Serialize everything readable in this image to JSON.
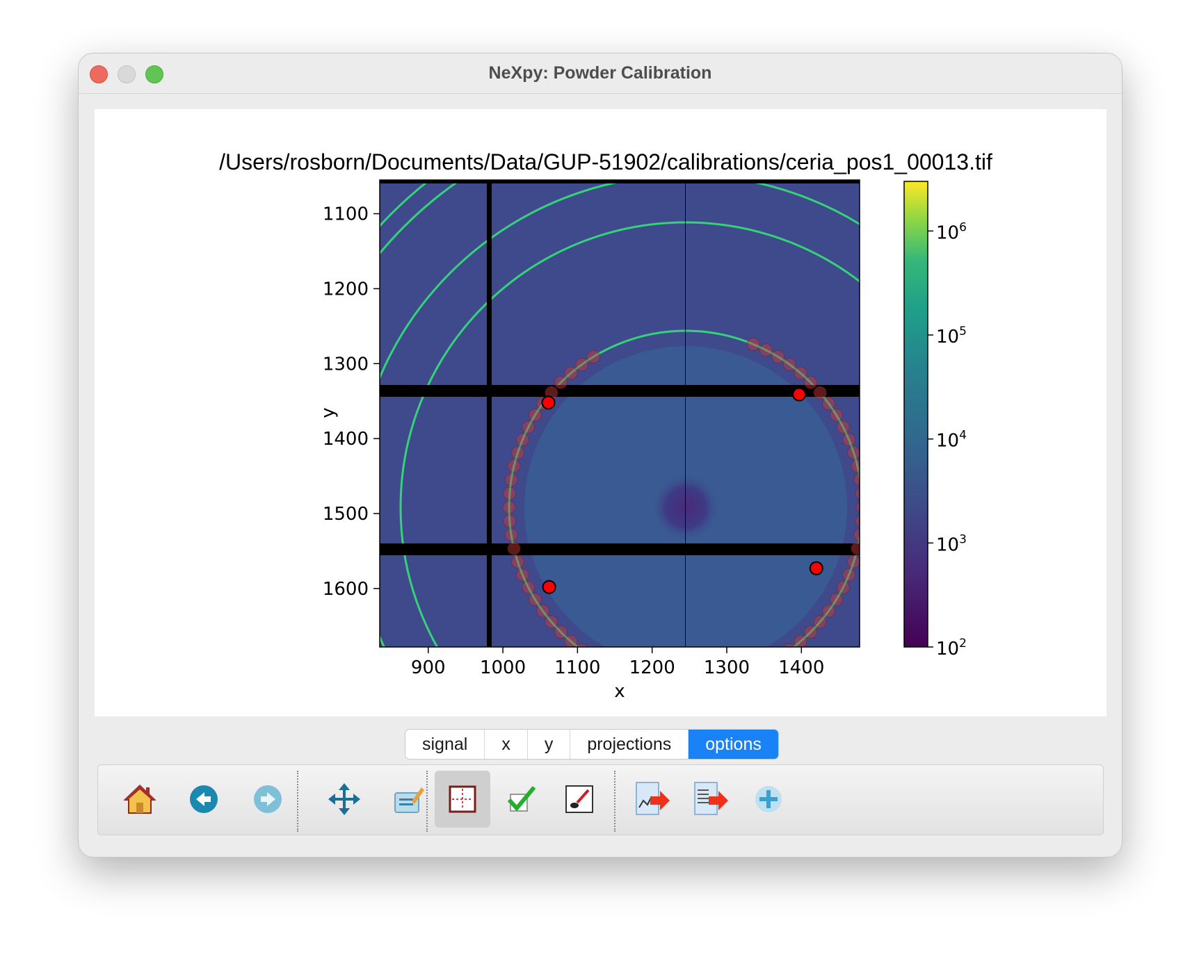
{
  "window": {
    "title": "NeXpy: Powder Calibration"
  },
  "plot": {
    "title": "/Users/rosborn/Documents/Data/GUP-51902/calibrations/ceria_pos1_00013.tif",
    "xlabel": "x",
    "ylabel": "y",
    "xticks": [
      "900",
      "1000",
      "1100",
      "1200",
      "1300",
      "1400"
    ],
    "yticks": [
      "1100",
      "1200",
      "1300",
      "1400",
      "1500",
      "1600"
    ],
    "colorbar": {
      "base": "10",
      "exponents": [
        "6",
        "5",
        "4",
        "3",
        "2"
      ]
    },
    "colors": {
      "background": "#3c4c8c",
      "ring": "#35d27a",
      "point": "#ff0000"
    }
  },
  "chart_data": {
    "type": "heatmap",
    "xlim": [
      835,
      1478
    ],
    "ylim": [
      1678,
      1055
    ],
    "colorbar_range": [
      100,
      3000000
    ],
    "colorbar_scale": "log",
    "colormap": "viridis",
    "grid": false,
    "selected_points": [
      {
        "x": 1061,
        "y": 1352
      },
      {
        "x": 1397,
        "y": 1341
      },
      {
        "x": 1062,
        "y": 1598
      },
      {
        "x": 1420,
        "y": 1573
      }
    ]
  },
  "tabs": [
    {
      "label": "signal",
      "active": false
    },
    {
      "label": "x",
      "active": false
    },
    {
      "label": "y",
      "active": false
    },
    {
      "label": "projections",
      "active": false
    },
    {
      "label": "options",
      "active": true
    }
  ],
  "toolbar": {
    "buttons": [
      {
        "icon": "home-icon"
      },
      {
        "icon": "back-arrow-icon"
      },
      {
        "icon": "forward-arrow-icon"
      },
      {
        "icon": "pan-icon"
      },
      {
        "icon": "edit-axes-icon"
      },
      {
        "icon": "zoom-rect-icon",
        "active": true
      },
      {
        "icon": "checkmark-icon"
      },
      {
        "icon": "brush-icon"
      },
      {
        "icon": "export-plot-icon"
      },
      {
        "icon": "export-data-icon"
      },
      {
        "icon": "add-icon"
      }
    ]
  }
}
